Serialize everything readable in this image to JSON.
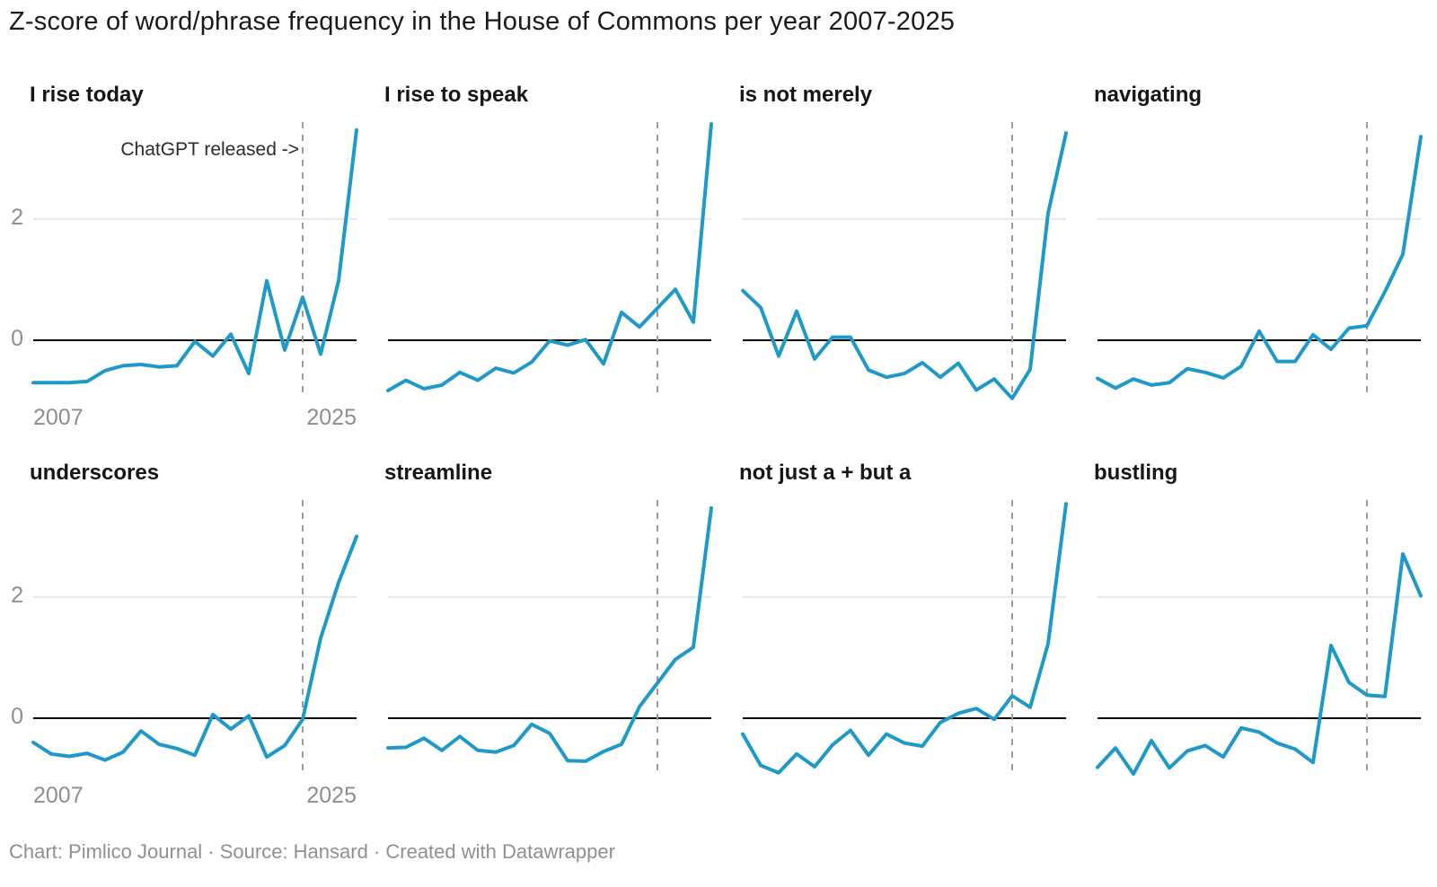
{
  "title": "Z-score of word/phrase frequency in the House of Commons per year 2007-2025",
  "annotation": {
    "text": "ChatGPT released ->"
  },
  "y_ticks": [
    "2",
    "0"
  ],
  "x_ticks": [
    "2007",
    "2025"
  ],
  "footer": "Chart: Pimlico Journal · Source: Hansard · Created with Datawrapper",
  "colors": {
    "line": "#1f99c7",
    "zero": "#000000",
    "grid": "#dcdcdc",
    "dashed": "#9b9b9b",
    "tick": "#8e8e8e",
    "header": "#161616",
    "footer": "#909090"
  },
  "chart_data": {
    "type": "line",
    "title": "Z-score of word/phrase frequency in the House of Commons per year 2007-2025",
    "x": [
      2007,
      2008,
      2009,
      2010,
      2011,
      2012,
      2013,
      2014,
      2015,
      2016,
      2017,
      2018,
      2019,
      2020,
      2021,
      2022,
      2023,
      2024,
      2025
    ],
    "xlabel": "",
    "ylabel": "Z-score",
    "ylim": [
      -1.05,
      3.66
    ],
    "y_gridlines": [
      0,
      2
    ],
    "grid": true,
    "legend_position": "none",
    "vline": {
      "x": 2022,
      "style": "dashed",
      "label": "ChatGPT released ->"
    },
    "series": [
      {
        "name": "I rise today",
        "values": [
          -0.7,
          -0.7,
          -0.7,
          -0.68,
          -0.5,
          -0.42,
          -0.4,
          -0.44,
          -0.42,
          -0.02,
          -0.26,
          0.1,
          -0.55,
          0.98,
          -0.16,
          0.71,
          -0.23,
          0.98,
          3.47
        ]
      },
      {
        "name": "I rise to speak",
        "values": [
          -0.83,
          -0.66,
          -0.8,
          -0.74,
          -0.53,
          -0.66,
          -0.46,
          -0.54,
          -0.36,
          -0.01,
          -0.08,
          0.01,
          -0.39,
          0.46,
          0.22,
          0.53,
          0.84,
          0.3,
          3.57
        ]
      },
      {
        "name": "is not merely",
        "values": [
          0.82,
          0.54,
          -0.26,
          0.48,
          -0.31,
          0.05,
          0.05,
          -0.49,
          -0.61,
          -0.55,
          -0.37,
          -0.61,
          -0.38,
          -0.82,
          -0.64,
          -0.96,
          -0.48,
          2.1,
          3.42
        ]
      },
      {
        "name": "navigating",
        "values": [
          -0.63,
          -0.79,
          -0.64,
          -0.74,
          -0.7,
          -0.47,
          -0.53,
          -0.62,
          -0.43,
          0.15,
          -0.35,
          -0.35,
          0.09,
          -0.15,
          0.2,
          0.24,
          0.8,
          1.42,
          3.36
        ]
      },
      {
        "name": "underscores",
        "values": [
          -0.4,
          -0.59,
          -0.63,
          -0.58,
          -0.69,
          -0.56,
          -0.21,
          -0.43,
          -0.5,
          -0.61,
          0.06,
          -0.18,
          0.04,
          -0.64,
          -0.45,
          -0.02,
          1.32,
          2.24,
          3.0
        ]
      },
      {
        "name": "streamline",
        "values": [
          -0.49,
          -0.48,
          -0.33,
          -0.53,
          -0.3,
          -0.53,
          -0.56,
          -0.45,
          -0.1,
          -0.25,
          -0.7,
          -0.71,
          -0.55,
          -0.43,
          0.19,
          0.58,
          0.97,
          1.17,
          3.47
        ]
      },
      {
        "name": "not just a + but a",
        "values": [
          -0.26,
          -0.78,
          -0.9,
          -0.59,
          -0.8,
          -0.44,
          -0.2,
          -0.61,
          -0.26,
          -0.41,
          -0.46,
          -0.07,
          0.08,
          0.16,
          -0.02,
          0.37,
          0.18,
          1.23,
          3.54
        ]
      },
      {
        "name": "bustling",
        "values": [
          -0.81,
          -0.49,
          -0.92,
          -0.37,
          -0.82,
          -0.54,
          -0.45,
          -0.64,
          -0.16,
          -0.23,
          -0.41,
          -0.51,
          -0.73,
          1.2,
          0.59,
          0.38,
          0.36,
          2.71,
          2.02
        ]
      }
    ]
  }
}
